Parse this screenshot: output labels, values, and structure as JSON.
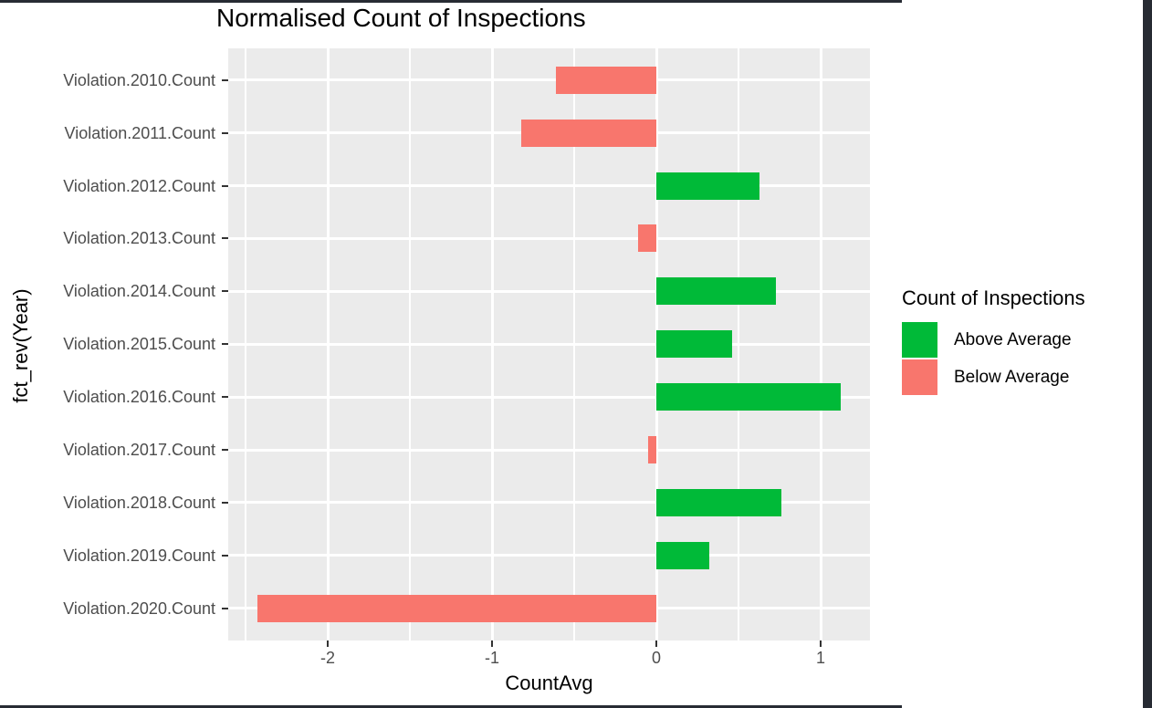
{
  "window": {
    "frame_color": "#272B33"
  },
  "chart_data": {
    "type": "bar",
    "orientation": "horizontal",
    "title": "Normalised Count of Inspections",
    "xlabel": "CountAvg",
    "ylabel": "fct_rev(Year)",
    "bars": [
      {
        "category": "Violation.2010.Count",
        "value": -0.61,
        "group": "Below Average"
      },
      {
        "category": "Violation.2011.Count",
        "value": -0.82,
        "group": "Below Average"
      },
      {
        "category": "Violation.2012.Count",
        "value": 0.63,
        "group": "Above Average"
      },
      {
        "category": "Violation.2013.Count",
        "value": -0.11,
        "group": "Below Average"
      },
      {
        "category": "Violation.2014.Count",
        "value": 0.73,
        "group": "Above Average"
      },
      {
        "category": "Violation.2015.Count",
        "value": 0.46,
        "group": "Above Average"
      },
      {
        "category": "Violation.2016.Count",
        "value": 1.12,
        "group": "Above Average"
      },
      {
        "category": "Violation.2017.Count",
        "value": -0.05,
        "group": "Below Average"
      },
      {
        "category": "Violation.2018.Count",
        "value": 0.76,
        "group": "Above Average"
      },
      {
        "category": "Violation.2019.Count",
        "value": 0.32,
        "group": "Above Average"
      },
      {
        "category": "Violation.2020.Count",
        "value": -2.43,
        "group": "Below Average"
      }
    ],
    "x_axis": {
      "label": "CountAvg",
      "ticks": [
        -2,
        -1,
        0,
        1
      ],
      "tick_labels": [
        "-2",
        "-1",
        "0",
        "1"
      ],
      "range": [
        -2.61,
        1.3
      ],
      "minor_gridlines": [
        -2.5,
        -1.5,
        -0.5,
        0.5
      ]
    },
    "y_axis": {
      "label": "fct_rev(Year)",
      "categories": [
        "Violation.2010.Count",
        "Violation.2011.Count",
        "Violation.2012.Count",
        "Violation.2013.Count",
        "Violation.2014.Count",
        "Violation.2015.Count",
        "Violation.2016.Count",
        "Violation.2017.Count",
        "Violation.2018.Count",
        "Violation.2019.Count",
        "Violation.2020.Count"
      ]
    },
    "legend": {
      "title": "Count of Inspections",
      "position": "right",
      "entries": [
        {
          "label": "Above Average",
          "color": "#00BA38"
        },
        {
          "label": "Below Average",
          "color": "#F8766D"
        }
      ]
    },
    "colors": {
      "above_hex": "#00BA38",
      "below_hex": "#F8766D",
      "panel_background": "#EBEBEB",
      "gridline": "#FFFFFF",
      "axis_text": "#4D4D4D",
      "title_text": "#000000"
    },
    "grid": true
  }
}
